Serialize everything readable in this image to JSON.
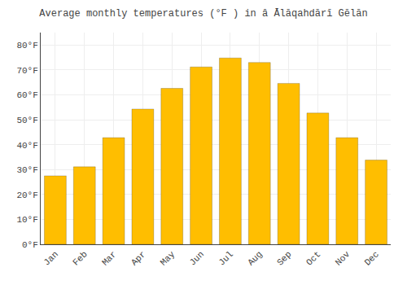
{
  "chart_data": {
    "type": "bar",
    "title": "Average monthly temperatures (°F ) in â Ālāqahdārī Gēlān",
    "categories": [
      "Jan",
      "Feb",
      "Mar",
      "Apr",
      "May",
      "Jun",
      "Jul",
      "Aug",
      "Sep",
      "Oct",
      "Nov",
      "Dec"
    ],
    "values": [
      27.5,
      31.1,
      42.8,
      54.3,
      62.6,
      71.2,
      74.8,
      73.0,
      64.6,
      52.7,
      42.8,
      33.8
    ],
    "color": "#FFBE00",
    "ylim": [
      0,
      85
    ],
    "yticks": [
      {
        "value": 0,
        "label": "0°F"
      },
      {
        "value": 10,
        "label": "10°F"
      },
      {
        "value": 20,
        "label": "20°F"
      },
      {
        "value": 30,
        "label": "30°F"
      },
      {
        "value": 40,
        "label": "40°F"
      },
      {
        "value": 50,
        "label": "50°F"
      },
      {
        "value": 60,
        "label": "60°F"
      },
      {
        "value": 70,
        "label": "70°F"
      },
      {
        "value": 80,
        "label": "80°F"
      }
    ],
    "grid": true
  }
}
